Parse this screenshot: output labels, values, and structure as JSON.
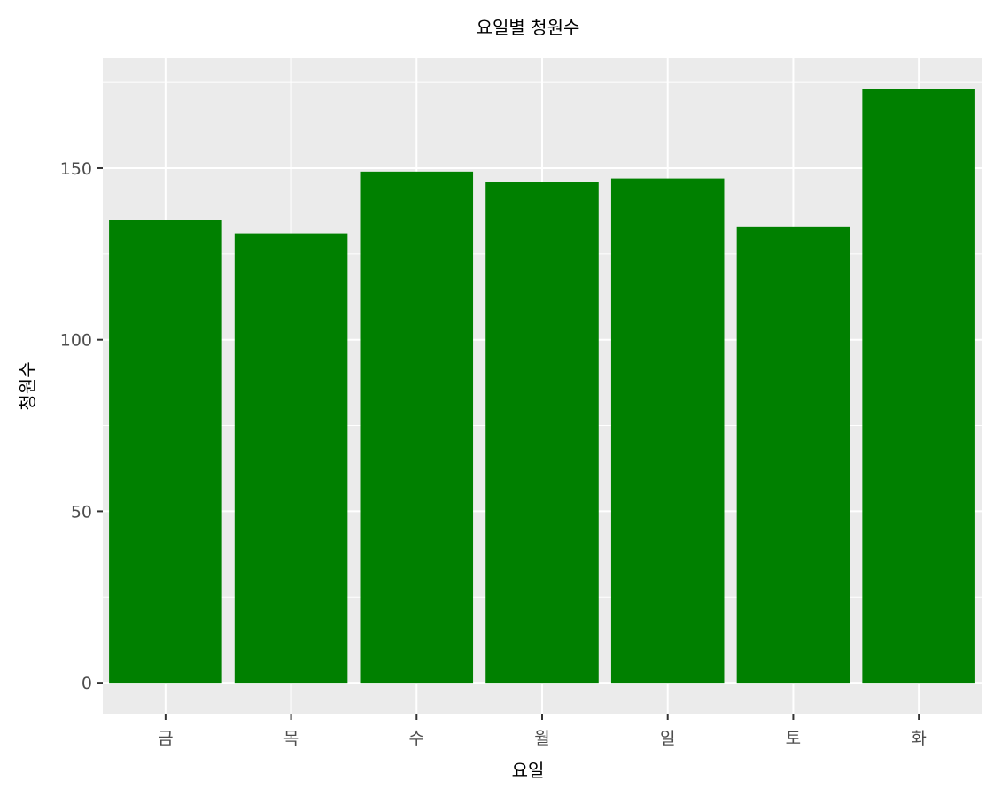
{
  "chart_data": {
    "type": "bar",
    "title": "요일별 청원수",
    "xlabel": "요일",
    "ylabel": "청원수",
    "categories": [
      "금",
      "목",
      "수",
      "월",
      "일",
      "토",
      "화"
    ],
    "values": [
      135,
      131,
      149,
      146,
      147,
      133,
      173
    ],
    "ylim": [
      -9,
      182
    ],
    "yticks": [
      0,
      50,
      100,
      150
    ],
    "ytick_labels": [
      "0",
      "50",
      "100",
      "150"
    ],
    "grid": true,
    "legend": "none",
    "colors": {
      "bar": "#008000",
      "panel": "#ebebeb",
      "grid": "#ffffff",
      "tick": "#333333",
      "tick_text": "#4d4d4d"
    }
  }
}
